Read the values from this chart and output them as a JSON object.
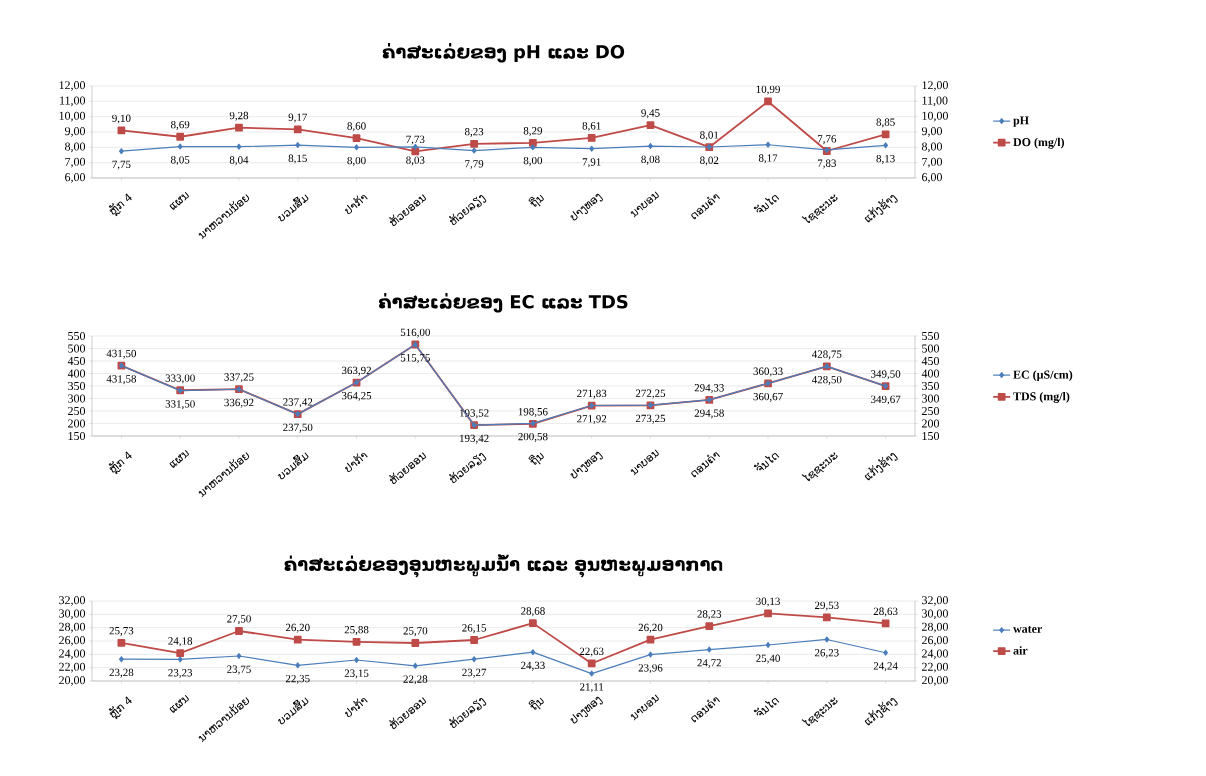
{
  "chart_data": [
    {
      "type": "line",
      "title": "ຄ່າສະເລ່ຍຂອງ pH ແລະ DO",
      "categories": [
        "ຫຼັກ 4",
        "ແຜນ",
        "ນາຫວານນ້ອຍ",
        "ບວມສົ້ມ",
        "ປາກ້າ",
        "ຫ້ວຍອອນ",
        "ຫ້ວຍລຽງ",
        "ຖີ່ນ",
        "ປາງທອງ",
        "ນາບອນ",
        "ດອນຄໍາ",
        "ຈັນໄດ",
        "ໄຊຊະນະ",
        "ແກ້ງຊ້າງ"
      ],
      "series": [
        {
          "name": "pH",
          "color": "#4a7ebb",
          "marker": "diamond",
          "values": [
            7.75,
            8.05,
            8.04,
            8.15,
            8.0,
            8.03,
            7.79,
            8.0,
            7.91,
            8.08,
            8.02,
            8.17,
            7.83,
            8.13
          ],
          "value_labels": [
            "7,75",
            "8,05",
            "8,04",
            "8,15",
            "8,00",
            "8,03",
            "7,79",
            "8,00",
            "7,91",
            "8,08",
            "8,02",
            "8,17",
            "7,83",
            "8,13"
          ]
        },
        {
          "name": "DO (mg/l)",
          "color": "#be4b48",
          "marker": "square",
          "axis": "y2",
          "values": [
            9.1,
            8.69,
            9.28,
            9.17,
            8.6,
            7.73,
            8.23,
            8.29,
            8.61,
            9.45,
            8.01,
            10.99,
            7.76,
            8.85
          ],
          "value_labels": [
            "9,10",
            "8,69",
            "9,28",
            "9,17",
            "8,60",
            "7,73",
            "8,23",
            "8,29",
            "8,61",
            "9,45",
            "8,01",
            "10,99",
            "7,76",
            "8,85"
          ]
        }
      ],
      "ylim": [
        6,
        12
      ],
      "yticks": [
        {
          "value": 6,
          "label": "6,00"
        },
        {
          "value": 7,
          "label": "7,00"
        },
        {
          "value": 8,
          "label": "8,00"
        },
        {
          "value": 9,
          "label": "9,00"
        },
        {
          "value": 10,
          "label": "10,00"
        },
        {
          "value": 11,
          "label": "11,00"
        },
        {
          "value": 12,
          "label": "12,00"
        }
      ],
      "y2lim": [
        6,
        12
      ],
      "y2ticks": [
        {
          "value": 6,
          "label": "6,00"
        },
        {
          "value": 7,
          "label": "7,00"
        },
        {
          "value": 8,
          "label": "8,00"
        },
        {
          "value": 9,
          "label": "9,00"
        },
        {
          "value": 10,
          "label": "10,00"
        },
        {
          "value": 11,
          "label": "11,00"
        },
        {
          "value": 12,
          "label": "12,00"
        }
      ],
      "grid": "y",
      "legend": "right"
    },
    {
      "type": "line",
      "title": "ຄ່າສະເລ່ຍຂອງ EC ແລະ TDS",
      "categories": [
        "ຫຼັກ 4",
        "ແຜນ",
        "ນາຫວານນ້ອຍ",
        "ບວມສົ້ມ",
        "ປາກ້າ",
        "ຫ້ວຍອອນ",
        "ຫ້ວຍລຽງ",
        "ຖີ່ນ",
        "ປາງທອງ",
        "ນາບອນ",
        "ດອນຄໍາ",
        "ຈັນໄດ",
        "ໄຊຊະນະ",
        "ແກ້ງຊ້າງ"
      ],
      "series": [
        {
          "name": "EC (µS/cm)",
          "color": "#4a7ebb",
          "marker": "diamond",
          "values": [
            431.58,
            331.5,
            336.92,
            237.5,
            364.25,
            515.75,
            193.42,
            200.58,
            271.92,
            273.25,
            294.58,
            360.67,
            428.5,
            349.67
          ],
          "value_labels": [
            "431,58",
            "331,50",
            "336,92",
            "237,50",
            "364,25",
            "515,75",
            "193,42",
            "200,58",
            "271,92",
            "273,25",
            "294,58",
            "360,67",
            "428,50",
            "349,67"
          ]
        },
        {
          "name": "TDS (mg/l)",
          "color": "#be4b48",
          "marker": "square",
          "axis": "y2",
          "values": [
            431.5,
            333.0,
            337.25,
            237.42,
            363.92,
            516.0,
            193.52,
            198.56,
            271.83,
            272.25,
            294.33,
            360.33,
            428.75,
            349.5
          ],
          "value_labels": [
            "431,50",
            "333,00",
            "337,25",
            "237,42",
            "363,92",
            "516,00",
            "193,52",
            "198,56",
            "271,83",
            "272,25",
            "294,33",
            "360,33",
            "428,75",
            "349,50"
          ]
        }
      ],
      "ylim": [
        150,
        550
      ],
      "yticks": [
        150,
        200,
        250,
        300,
        350,
        400,
        450,
        500,
        550
      ],
      "y2lim": [
        150,
        550
      ],
      "y2ticks": [
        150,
        200,
        250,
        300,
        350,
        400,
        450,
        500,
        550
      ],
      "grid": "y",
      "legend": "right"
    },
    {
      "type": "line",
      "title": "ຄ່າສະເລ່ຍຂອງອຸນຫະພູມນໍ້າ ແລະ ອຸນຫະພູມອາກາດ",
      "categories": [
        "ຫຼັກ 4",
        "ແຜນ",
        "ນາຫວານນ້ອຍ",
        "ບວມສົ້ມ",
        "ປາກ້າ",
        "ຫ້ວຍອອນ",
        "ຫ້ວຍລຽງ",
        "ຖີ່ນ",
        "ປາງທອງ",
        "ນາບອນ",
        "ດອນຄໍາ",
        "ຈັນໄດ",
        "ໄຊຊະນະ",
        "ແກ້ງຊ້າງ"
      ],
      "series": [
        {
          "name": "water",
          "color": "#4a7ebb",
          "marker": "diamond",
          "values": [
            23.28,
            23.23,
            23.75,
            22.35,
            23.15,
            22.28,
            23.27,
            24.33,
            21.11,
            23.96,
            24.72,
            25.4,
            26.23,
            24.24
          ],
          "value_labels": [
            "23,28",
            "23,23",
            "23,75",
            "22,35",
            "23,15",
            "22,28",
            "23,27",
            "24,33",
            "21,11",
            "23,96",
            "24,72",
            "25,40",
            "26,23",
            "24,24"
          ]
        },
        {
          "name": "air",
          "color": "#be4b48",
          "marker": "square",
          "axis": "y2",
          "values": [
            25.73,
            24.18,
            27.5,
            26.2,
            25.88,
            25.7,
            26.15,
            28.68,
            22.63,
            26.2,
            28.23,
            30.13,
            29.53,
            28.63
          ],
          "value_labels": [
            "25,73",
            "24,18",
            "27,50",
            "26,20",
            "25,88",
            "25,70",
            "26,15",
            "28,68",
            "22,63",
            "26,20",
            "28,23",
            "30,13",
            "29,53",
            "28,63"
          ]
        }
      ],
      "ylim": [
        20,
        32
      ],
      "yticks": [
        {
          "value": 20,
          "label": "20,00"
        },
        {
          "value": 22,
          "label": "22,00"
        },
        {
          "value": 24,
          "label": "24,00"
        },
        {
          "value": 26,
          "label": "26,00"
        },
        {
          "value": 28,
          "label": "28,00"
        },
        {
          "value": 30,
          "label": "30,00"
        },
        {
          "value": 32,
          "label": "32,00"
        }
      ],
      "y2lim": [
        20,
        32
      ],
      "y2ticks": [
        {
          "value": 20,
          "label": "20,00"
        },
        {
          "value": 22,
          "label": "22,00"
        },
        {
          "value": 24,
          "label": "24,00"
        },
        {
          "value": 26,
          "label": "26,00"
        },
        {
          "value": 28,
          "label": "28,00"
        },
        {
          "value": 30,
          "label": "30,00"
        },
        {
          "value": 32,
          "label": "32,00"
        }
      ],
      "grid": "y",
      "legend": "right"
    }
  ]
}
